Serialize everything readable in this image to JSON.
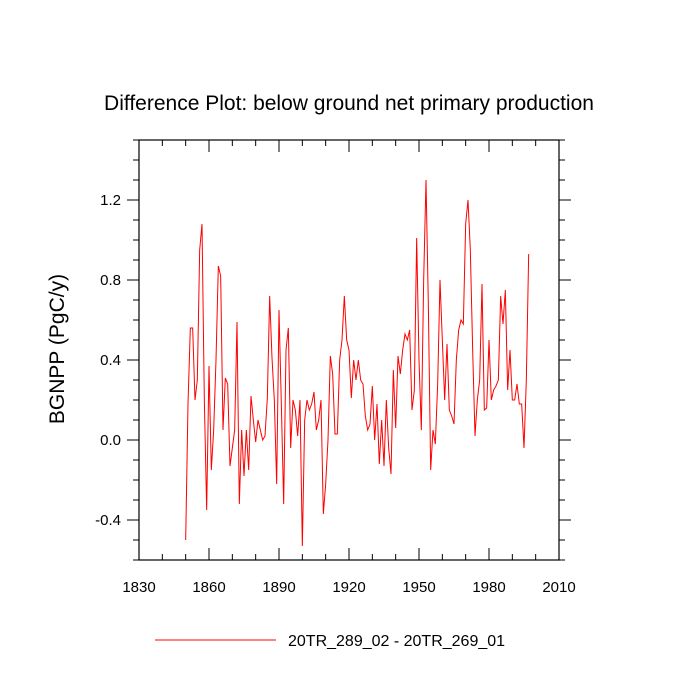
{
  "chart_data": {
    "type": "line",
    "title": "Difference Plot: below ground net primary production",
    "xlabel": "",
    "ylabel": "BGNPP  (PgC/y)",
    "xlim": [
      1830,
      2010
    ],
    "ylim": [
      -0.6,
      1.5
    ],
    "x_ticks": [
      1830,
      1860,
      1890,
      1920,
      1950,
      1980,
      2010
    ],
    "y_ticks": [
      -0.4,
      0.0,
      0.4,
      0.8,
      1.2
    ],
    "y_tick_labels": [
      "-0.4",
      "0.0",
      "0.4",
      "0.8",
      "1.2"
    ],
    "grid": false,
    "legend_position": "bottom",
    "series": [
      {
        "name": "20TR_289_02 - 20TR_269_01",
        "color": "#ff0000",
        "start_year": 1850,
        "values": [
          -0.5,
          0.18,
          0.56,
          0.56,
          0.2,
          0.3,
          0.95,
          1.08,
          0.2,
          -0.35,
          0.37,
          -0.15,
          0.05,
          0.4,
          0.87,
          0.82,
          0.05,
          0.31,
          0.28,
          -0.13,
          -0.04,
          0.05,
          0.59,
          -0.32,
          0.05,
          -0.18,
          0.05,
          -0.15,
          0.22,
          0.1,
          -0.01,
          0.1,
          0.05,
          0.0,
          0.02,
          0.21,
          0.72,
          0.41,
          0.2,
          -0.22,
          0.65,
          0.18,
          -0.32,
          0.45,
          0.56,
          -0.04,
          0.2,
          0.15,
          0.02,
          0.2,
          -0.53,
          0.1,
          0.2,
          0.15,
          0.18,
          0.24,
          0.05,
          0.1,
          0.2,
          -0.37,
          -0.22,
          0.0,
          0.42,
          0.33,
          0.03,
          0.03,
          0.4,
          0.5,
          0.72,
          0.5,
          0.45,
          0.21,
          0.4,
          0.3,
          0.4,
          0.3,
          0.28,
          0.12,
          0.05,
          0.08,
          0.27,
          0.0,
          0.18,
          -0.12,
          0.1,
          -0.13,
          0.2,
          -0.04,
          -0.17,
          0.35,
          0.06,
          0.42,
          0.33,
          0.45,
          0.53,
          0.5,
          0.55,
          0.15,
          0.25,
          1.01,
          0.4,
          0.05,
          0.8,
          1.3,
          0.68,
          -0.15,
          0.05,
          -0.02,
          0.28,
          0.8,
          0.5,
          0.2,
          0.48,
          0.15,
          0.12,
          0.08,
          0.4,
          0.55,
          0.6,
          0.58,
          1.08,
          1.2,
          0.95,
          0.45,
          0.02,
          0.2,
          0.3,
          0.78,
          0.15,
          0.16,
          0.5,
          0.2,
          0.25,
          0.27,
          0.3,
          0.72,
          0.58,
          0.75,
          0.25,
          0.45,
          0.2,
          0.2,
          0.28,
          0.18,
          0.18,
          -0.04,
          0.3,
          0.93
        ]
      }
    ]
  }
}
